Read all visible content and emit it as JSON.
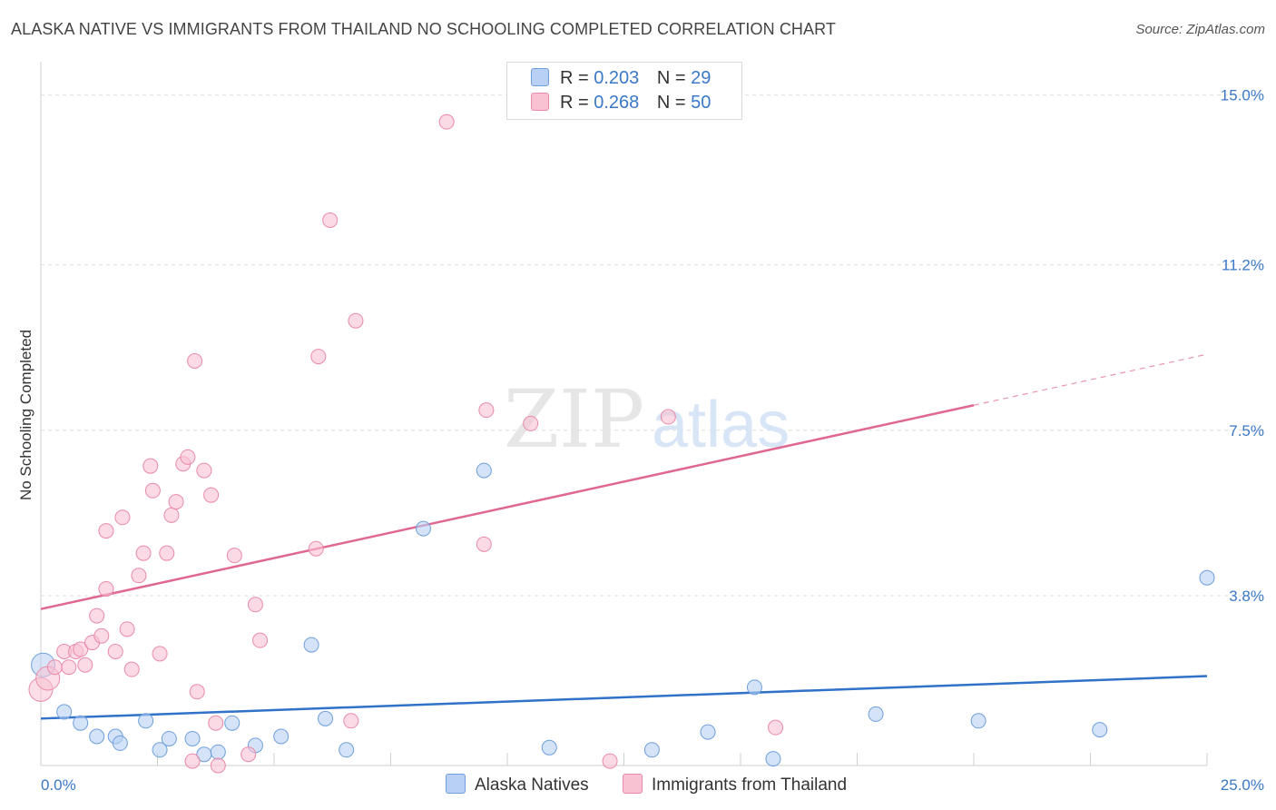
{
  "title": "ALASKA NATIVE VS IMMIGRANTS FROM THAILAND NO SCHOOLING COMPLETED CORRELATION CHART",
  "source": "Source: ZipAtlas.com",
  "watermark": {
    "zip": "ZIP",
    "atlas": "atlas"
  },
  "legend": {
    "series1": {
      "r_label": "R =",
      "r_value": "0.203",
      "n_label": "N =",
      "n_value": "29"
    },
    "series2": {
      "r_label": "R =",
      "r_value": "0.268",
      "n_label": "N =",
      "n_value": "50"
    }
  },
  "chart_data": {
    "type": "scatter",
    "title": "ALASKA NATIVE VS IMMIGRANTS FROM THAILAND NO SCHOOLING COMPLETED CORRELATION CHART",
    "xlabel": "",
    "ylabel": "No Schooling Completed",
    "xlim": [
      0,
      25
    ],
    "ylim": [
      0,
      15.5
    ],
    "x_tick_labels": [
      {
        "value": 0,
        "label": "0.0%"
      },
      {
        "value": 25,
        "label": "25.0%"
      }
    ],
    "y_tick_labels": [
      {
        "value": 3.8,
        "label": "3.8%"
      },
      {
        "value": 7.5,
        "label": "7.5%"
      },
      {
        "value": 11.2,
        "label": "11.2%"
      },
      {
        "value": 15.0,
        "label": "15.0%"
      }
    ],
    "grid": true,
    "series": [
      {
        "name": "Alaska Natives",
        "color": "#6f9fdc",
        "fill": "#b8d0f3",
        "line_color": "#2f72c8",
        "regression": {
          "x0": 0,
          "y0": 1.05,
          "x1": 25,
          "y1": 2.0,
          "solid_to": 25
        },
        "points": [
          [
            0.05,
            2.25
          ],
          [
            0.5,
            1.2
          ],
          [
            0.85,
            0.95
          ],
          [
            1.2,
            0.65
          ],
          [
            1.6,
            0.65
          ],
          [
            1.7,
            0.5
          ],
          [
            2.25,
            1.0
          ],
          [
            2.55,
            0.35
          ],
          [
            2.75,
            0.6
          ],
          [
            3.25,
            0.6
          ],
          [
            3.5,
            0.25
          ],
          [
            3.8,
            0.3
          ],
          [
            4.1,
            0.95
          ],
          [
            4.6,
            0.45
          ],
          [
            5.15,
            0.65
          ],
          [
            5.8,
            2.7
          ],
          [
            6.1,
            1.05
          ],
          [
            6.55,
            0.35
          ],
          [
            8.2,
            5.3
          ],
          [
            9.5,
            6.6
          ],
          [
            10.9,
            0.4
          ],
          [
            13.1,
            0.35
          ],
          [
            14.3,
            0.75
          ],
          [
            15.3,
            1.75
          ],
          [
            15.7,
            0.15
          ],
          [
            17.9,
            1.15
          ],
          [
            20.1,
            1.0
          ],
          [
            22.7,
            0.8
          ],
          [
            25.0,
            4.2
          ]
        ]
      },
      {
        "name": "Immigrants from Thailand",
        "color": "#e98aa8",
        "fill": "#f8c2d3",
        "line_color": "#e06890",
        "regression": {
          "x0": 0,
          "y0": 3.5,
          "x1": 25,
          "y1": 9.2,
          "solid_to": 20
        },
        "points": [
          [
            0.0,
            1.7
          ],
          [
            0.15,
            1.95
          ],
          [
            0.3,
            2.2
          ],
          [
            0.5,
            2.55
          ],
          [
            0.6,
            2.2
          ],
          [
            0.75,
            2.55
          ],
          [
            0.85,
            2.6
          ],
          [
            0.95,
            2.25
          ],
          [
            1.1,
            2.75
          ],
          [
            1.2,
            3.35
          ],
          [
            1.3,
            2.9
          ],
          [
            1.4,
            3.95
          ],
          [
            1.4,
            5.25
          ],
          [
            1.6,
            2.55
          ],
          [
            1.75,
            5.55
          ],
          [
            1.85,
            3.05
          ],
          [
            1.95,
            2.15
          ],
          [
            2.1,
            4.25
          ],
          [
            2.2,
            4.75
          ],
          [
            2.35,
            6.7
          ],
          [
            2.4,
            6.15
          ],
          [
            2.55,
            2.5
          ],
          [
            2.7,
            4.75
          ],
          [
            2.8,
            5.6
          ],
          [
            2.9,
            5.9
          ],
          [
            3.05,
            6.75
          ],
          [
            3.15,
            6.9
          ],
          [
            3.25,
            0.1
          ],
          [
            3.3,
            9.05
          ],
          [
            3.35,
            1.65
          ],
          [
            3.5,
            6.6
          ],
          [
            3.65,
            6.05
          ],
          [
            3.75,
            0.95
          ],
          [
            3.8,
            0.0
          ],
          [
            4.15,
            4.7
          ],
          [
            4.45,
            0.25
          ],
          [
            4.6,
            3.6
          ],
          [
            4.7,
            2.8
          ],
          [
            5.9,
            4.85
          ],
          [
            5.95,
            9.15
          ],
          [
            6.2,
            12.2
          ],
          [
            6.65,
            1.0
          ],
          [
            6.75,
            9.95
          ],
          [
            8.7,
            14.4
          ],
          [
            9.5,
            4.95
          ],
          [
            9.55,
            7.95
          ],
          [
            10.5,
            7.65
          ],
          [
            12.2,
            0.1
          ],
          [
            13.45,
            7.8
          ],
          [
            15.75,
            0.85
          ]
        ]
      }
    ]
  }
}
